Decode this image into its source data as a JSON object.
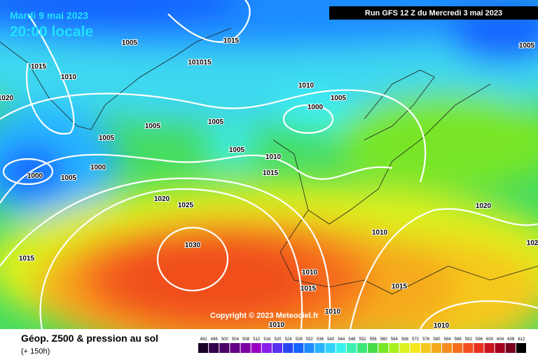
{
  "header": {
    "date": "Mardi 9 mai 2023",
    "time": "20:00 locale",
    "run": "Run GFS 12 Z du Mercredi 3 mai 2023"
  },
  "copyright": "Copyright © 2023 Meteociel.fr",
  "footer": {
    "title": "Géop. Z500 & pression au sol",
    "subtitle": "(+ 150h)"
  },
  "scale": {
    "levels": [
      492,
      496,
      500,
      504,
      508,
      512,
      516,
      520,
      524,
      528,
      532,
      536,
      540,
      544,
      548,
      552,
      556,
      560,
      564,
      568,
      572,
      576,
      580,
      584,
      588,
      592,
      596,
      600,
      604,
      608,
      612
    ],
    "colors": [
      "#1a0026",
      "#32004a",
      "#4b0068",
      "#640086",
      "#7d00a4",
      "#9a00c4",
      "#8a1ee8",
      "#5a32f0",
      "#2846f5",
      "#1464ff",
      "#1e8cff",
      "#28b4ff",
      "#32d2ff",
      "#3cf0f0",
      "#3cf0b4",
      "#3ce678",
      "#46dc46",
      "#78e628",
      "#aaf01e",
      "#dcf01e",
      "#f5e61e",
      "#f5c81e",
      "#f5aa1e",
      "#f58c1e",
      "#f56e1e",
      "#f0501e",
      "#e6321e",
      "#c8141e",
      "#a0001e",
      "#78001e",
      "#000000"
    ]
  },
  "isobar_labels": [
    "1005",
    "1015",
    "1015",
    "1010",
    "101015",
    "1010",
    "1005",
    "1000",
    "1020",
    "1005",
    "1005",
    "1005",
    "1005",
    "1010",
    "1015",
    "1000",
    "1000",
    "1005",
    "1020",
    "1025",
    "1020",
    "1010",
    "1030",
    "1015",
    "1010",
    "1015",
    "1015",
    "1010",
    "1010",
    "1010",
    "1005",
    "102"
  ]
}
